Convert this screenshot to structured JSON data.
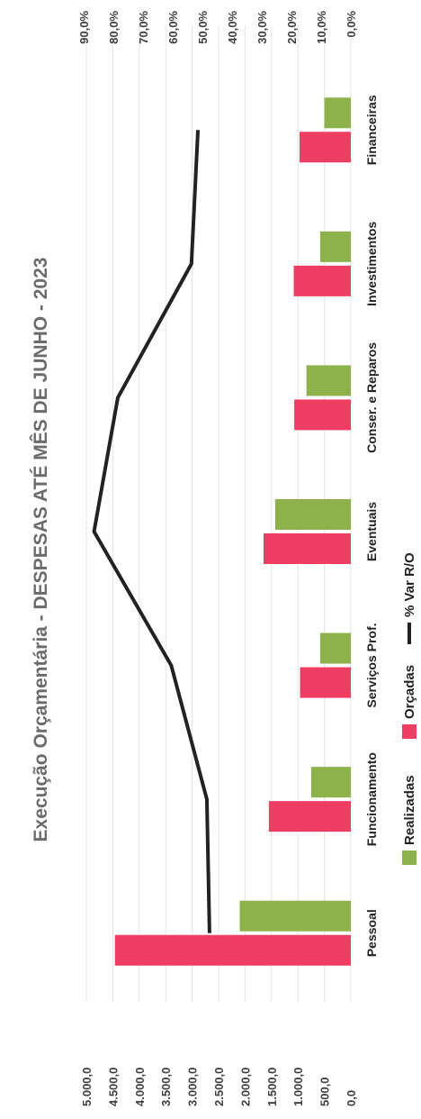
{
  "chart_data": {
    "type": "bar",
    "title": "Execução Orçamentária - DESPESAS ATÉ MÊS DE JUNHO - 2023",
    "categories": [
      "Pessoal",
      "Funcionamento",
      "Serviços Prof.",
      "Eventuais",
      "Conser. e Reparos",
      "Investimentos",
      "Financeiras"
    ],
    "series": [
      {
        "name": "Realizadas",
        "kind": "bar",
        "axis": "left",
        "color": "#8db24c",
        "values": [
          2100,
          750,
          580,
          1430,
          840,
          580,
          500
        ]
      },
      {
        "name": "Orçadas",
        "kind": "bar",
        "axis": "left",
        "color": "#ee3e63",
        "values": [
          4460,
          1550,
          960,
          1650,
          1070,
          1080,
          970
        ]
      },
      {
        "name": "% Var R/O",
        "kind": "line",
        "axis": "right",
        "color": "#222222",
        "values": [
          47.6,
          48.5,
          60.5,
          86.5,
          78.5,
          53.7,
          51.5
        ]
      }
    ],
    "left_axis": {
      "min": 0,
      "max": 5000,
      "step": 500,
      "tick_labels": [
        "0,0",
        "500,0",
        "1.000,0",
        "1.500,0",
        "2.000,0",
        "2.500,0",
        "3.000,0",
        "3.500,0",
        "4.000,0",
        "4.500,0",
        "5.000,0"
      ]
    },
    "right_axis": {
      "min": 0,
      "max": 90,
      "step": 10,
      "tick_labels": [
        "0,0%",
        "10,0%",
        "20,0%",
        "30,0%",
        "40,0%",
        "50,0%",
        "60,0%",
        "70,0%",
        "80,0%",
        "90,0%"
      ]
    },
    "grid": true,
    "legend": "bottom",
    "orientation": "rotated"
  }
}
